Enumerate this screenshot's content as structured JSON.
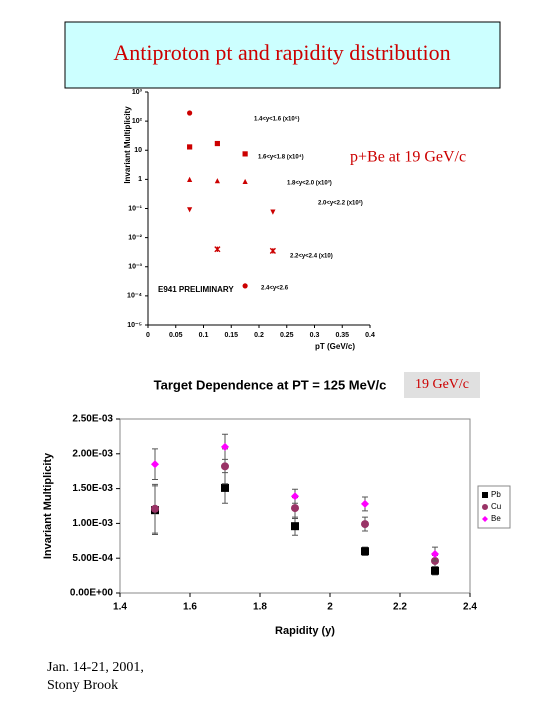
{
  "header": {
    "title": "Antiproton pt and rapidity distribution"
  },
  "chart_data": [
    {
      "type": "scatter",
      "ylabel": "Invariant Multiplicity",
      "xlabel": "pT (GeV/c)",
      "annotations": [
        "E941 PRELIMINARY",
        "p+Be at 19 GeV/c"
      ],
      "xlim": [
        0,
        0.4
      ],
      "xticks": [
        0,
        0.05,
        0.1,
        0.15,
        0.2,
        0.25,
        0.3,
        0.35,
        0.4
      ],
      "ylim": [
        1e-05,
        1000
      ],
      "ylog": true,
      "grid": false,
      "yticks": [
        {
          "value": 1000,
          "label": "10³"
        },
        {
          "value": 100,
          "label": "10²"
        },
        10,
        1,
        {
          "value": 0.1,
          "label": "10⁻¹"
        },
        {
          "value": 0.01,
          "label": "10⁻²"
        },
        {
          "value": 0.001,
          "label": "10⁻³"
        },
        {
          "value": 0.0001,
          "label": "10⁻⁴"
        },
        {
          "value": 1e-05,
          "label": "10⁻⁵"
        }
      ],
      "series": [
        {
          "name": "1.4<y<1.6 (x10⁵)",
          "color": "#cc0000",
          "marker": "circle",
          "x": [
            0.075
          ],
          "values": [
            190
          ]
        },
        {
          "name": "1.6<y<1.8 (x10⁴)",
          "color": "#cc0000",
          "marker": "square",
          "x": [
            0.075,
            0.125,
            0.175
          ],
          "values": [
            13,
            17,
            7.5
          ]
        },
        {
          "name": "1.8<y<2.0 (x10³)",
          "color": "#cc0000",
          "marker": "triangle-up",
          "x": [
            0.075,
            0.125,
            0.175
          ],
          "values": [
            1,
            0.9,
            0.85
          ]
        },
        {
          "name": "2.0<y<2.2 (x10²)",
          "color": "#cc0000",
          "marker": "triangle-down",
          "x": [
            0.075,
            0.225
          ],
          "values": [
            0.09,
            0.075
          ]
        },
        {
          "name": "2.2<y<2.4 (x10)",
          "color": "#cc0000",
          "marker": "x",
          "x": [
            0.125,
            0.225
          ],
          "values": [
            0.004,
            0.0035
          ]
        },
        {
          "name": "2.4<y<2.6",
          "color": "#cc0000",
          "marker": "circle",
          "x": [
            0.175
          ],
          "values": [
            0.00022
          ]
        }
      ]
    },
    {
      "type": "scatter",
      "title": "Target Dependence at PT = 125 MeV/c",
      "ylabel": "Invariant Multiplicity",
      "xlabel": "Rapidity (y)",
      "annotations": [
        "19 GeV/c"
      ],
      "xlim": [
        1.4,
        2.4
      ],
      "xticks": [
        1.4,
        1.6,
        1.8,
        2,
        2.2,
        2.4
      ],
      "ylim": [
        0,
        0.0025
      ],
      "grid": false,
      "yticks": [
        {
          "value": 0,
          "label": "0.00E+00"
        },
        {
          "value": 0.0005,
          "label": "5.00E-04"
        },
        {
          "value": 0.001,
          "label": "1.00E-03"
        },
        {
          "value": 0.0015,
          "label": "1.50E-03"
        },
        {
          "value": 0.002,
          "label": "2.00E-03"
        },
        {
          "value": 0.0025,
          "label": "2.50E-03"
        }
      ],
      "series": [
        {
          "name": "Pb",
          "color": "#000000",
          "marker": "square",
          "x": [
            1.5,
            1.7,
            1.9,
            2.1,
            2.3
          ],
          "values": [
            0.00119,
            0.00151,
            0.00096,
            0.0006,
            0.00032
          ],
          "errors": [
            0.00035,
            0.00022,
            0.00013,
            6e-05,
            6e-05
          ]
        },
        {
          "name": "Cu",
          "color": "#993366",
          "marker": "circle",
          "x": [
            1.5,
            1.7,
            1.9,
            2.1,
            2.3
          ],
          "values": [
            0.00121,
            0.00182,
            0.00122,
            0.00099,
            0.00046
          ],
          "errors": [
            0.00035,
            0.00025,
            0.00015,
            0.0001,
            8e-05
          ]
        },
        {
          "name": "Be",
          "color": "#ff00ff",
          "marker": "diamond",
          "x": [
            1.5,
            1.7,
            1.9,
            2.1,
            2.3
          ],
          "values": [
            0.00185,
            0.0021,
            0.00139,
            0.00128,
            0.00056
          ],
          "errors": [
            0.00022,
            0.00018,
            0.0001,
            0.0001,
            0.0001
          ]
        }
      ]
    }
  ],
  "footer": {
    "lines": [
      "Jan. 14-21, 2001,",
      "Stony Brook"
    ]
  }
}
